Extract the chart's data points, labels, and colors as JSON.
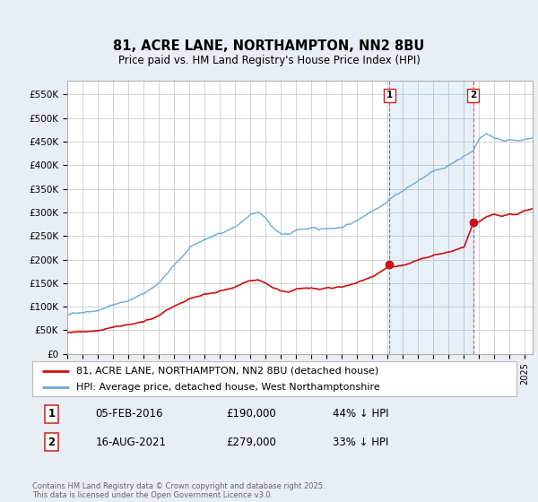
{
  "title": "81, ACRE LANE, NORTHAMPTON, NN2 8BU",
  "subtitle": "Price paid vs. HM Land Registry's House Price Index (HPI)",
  "ylabel_ticks": [
    "£0",
    "£50K",
    "£100K",
    "£150K",
    "£200K",
    "£250K",
    "£300K",
    "£350K",
    "£400K",
    "£450K",
    "£500K",
    "£550K"
  ],
  "ytick_values": [
    0,
    50000,
    100000,
    150000,
    200000,
    250000,
    300000,
    350000,
    400000,
    450000,
    500000,
    550000
  ],
  "ylim": [
    0,
    580000
  ],
  "background_color": "#e8eef4",
  "plot_bg_color": "#ffffff",
  "grid_color": "#cccccc",
  "hpi_line_color": "#6aaed6",
  "price_line_color": "#cc1111",
  "sale1_date": "05-FEB-2016",
  "sale1_price": 190000,
  "sale1_label": "44% ↓ HPI",
  "sale1_x": 2016.1,
  "sale2_date": "16-AUG-2021",
  "sale2_price": 279000,
  "sale2_label": "33% ↓ HPI",
  "sale2_x": 2021.6,
  "legend_line1": "81, ACRE LANE, NORTHAMPTON, NN2 8BU (detached house)",
  "legend_line2": "HPI: Average price, detached house, West Northamptonshire",
  "footnote": "Contains HM Land Registry data © Crown copyright and database right 2025.\nThis data is licensed under the Open Government Licence v3.0.",
  "xmin": 1995,
  "xmax": 2025.5
}
